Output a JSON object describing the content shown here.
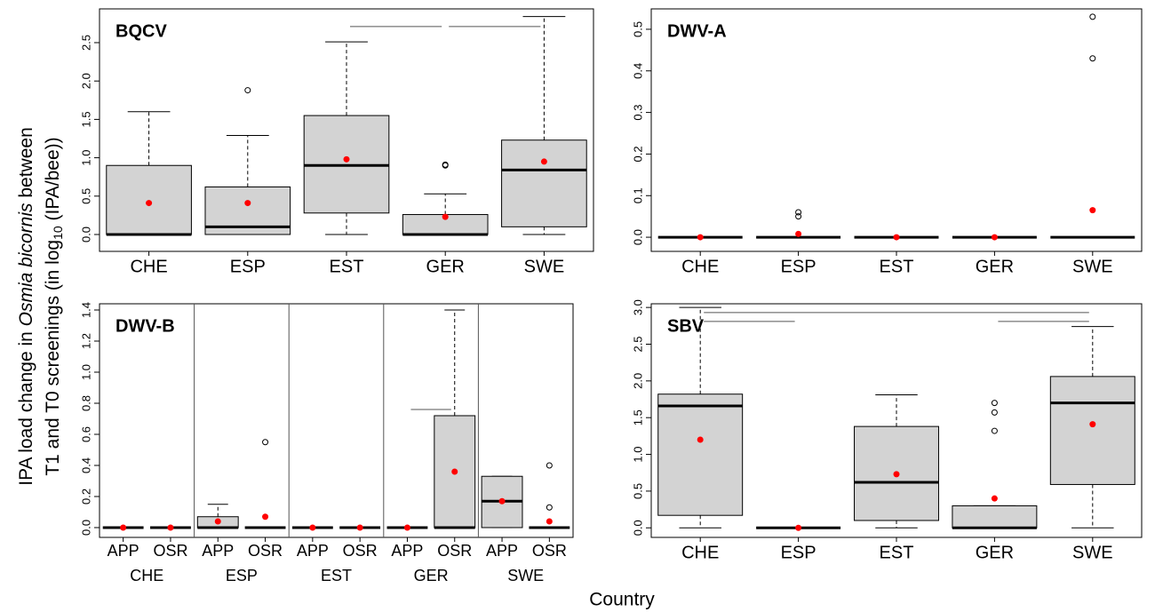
{
  "y_label": [
    [
      "IPA load change in ",
      "Osmia bicornis",
      " between"
    ],
    [
      "T1 and T0 screenings (in log",
      "10",
      " (IPA/bee))"
    ]
  ],
  "x_label": "Country",
  "chart_data": [
    {
      "type": "box",
      "title": "BQCV",
      "categories": [
        "CHE",
        "ESP",
        "EST",
        "GER",
        "SWE"
      ],
      "box_color": "#d3d3d3",
      "mean_color": "#ff0000",
      "boxes": [
        {
          "min": 0,
          "q1": 0,
          "median": 0,
          "q3": 0.9,
          "max": 1.6,
          "mean": 0.41
        },
        {
          "min": 0,
          "q1": 0,
          "median": 0.1,
          "q3": 0.62,
          "max": 1.29,
          "mean": 0.41,
          "outliers": [
            1.88
          ]
        },
        {
          "min": 0,
          "q1": 0.28,
          "median": 0.9,
          "q3": 1.55,
          "max": 2.51,
          "mean": 0.98
        },
        {
          "min": 0,
          "q1": 0,
          "median": 0,
          "q3": 0.26,
          "max": 0.53,
          "mean": 0.23,
          "outliers": [
            0.9,
            0.91
          ]
        },
        {
          "min": 0,
          "q1": 0.1,
          "median": 0.84,
          "q3": 1.23,
          "max": 2.84,
          "mean": 0.95
        }
      ],
      "comparisons": [
        {
          "from": 2,
          "to": 3,
          "y": 2.71
        },
        {
          "from": 3,
          "to": 4,
          "y": 2.71
        }
      ],
      "ylim": [
        -0.22,
        2.94
      ],
      "yticks": [
        {
          "value": 0,
          "label": "0.0"
        },
        0.5,
        {
          "value": 1,
          "label": "1.0"
        },
        1.5,
        {
          "value": 2,
          "label": "2.0"
        },
        2.5
      ]
    },
    {
      "type": "box",
      "title": "DWV-A",
      "categories": [
        "CHE",
        "ESP",
        "EST",
        "GER",
        "SWE"
      ],
      "box_color": "#d3d3d3",
      "mean_color": "#ff0000",
      "boxes": [
        {
          "min": 0,
          "q1": 0,
          "median": 0,
          "q3": 0,
          "max": 0,
          "mean": 0
        },
        {
          "min": 0,
          "q1": 0,
          "median": 0,
          "q3": 0,
          "max": 0,
          "mean": 0.008,
          "outliers": [
            0.05,
            0.06
          ]
        },
        {
          "min": 0,
          "q1": 0,
          "median": 0,
          "q3": 0,
          "max": 0,
          "mean": 0
        },
        {
          "min": 0,
          "q1": 0,
          "median": 0,
          "q3": 0,
          "max": 0,
          "mean": 0
        },
        {
          "min": 0,
          "q1": 0,
          "median": 0,
          "q3": 0,
          "max": 0,
          "mean": 0.065,
          "outliers": [
            0.43,
            0.53
          ]
        }
      ],
      "ylim": [
        -0.034,
        0.549
      ],
      "yticks": [
        {
          "value": 0,
          "label": "0.0"
        },
        0.1,
        0.2,
        0.3,
        0.4,
        0.5
      ]
    },
    {
      "type": "box",
      "title": "DWV-B",
      "categories": [
        "APP",
        "OSR",
        "APP",
        "OSR",
        "APP",
        "OSR",
        "APP",
        "OSR",
        "APP",
        "OSR"
      ],
      "groups": [
        "CHE",
        "ESP",
        "EST",
        "GER",
        "SWE"
      ],
      "box_color": "#d3d3d3",
      "mean_color": "#ff0000",
      "boxes": [
        {
          "min": 0,
          "q1": 0,
          "median": 0,
          "q3": 0,
          "max": 0,
          "mean": 0
        },
        {
          "min": 0,
          "q1": 0,
          "median": 0,
          "q3": 0,
          "max": 0,
          "mean": 0
        },
        {
          "min": 0,
          "q1": 0,
          "median": 0,
          "q3": 0.07,
          "max": 0.15,
          "mean": 0.04
        },
        {
          "min": 0,
          "q1": 0,
          "median": 0,
          "q3": 0,
          "max": 0,
          "mean": 0.07,
          "outliers": [
            0.55
          ]
        },
        {
          "min": 0,
          "q1": 0,
          "median": 0,
          "q3": 0,
          "max": 0,
          "mean": 0
        },
        {
          "min": 0,
          "q1": 0,
          "median": 0,
          "q3": 0,
          "max": 0,
          "mean": 0
        },
        {
          "min": 0,
          "q1": 0,
          "median": 0,
          "q3": 0,
          "max": 0,
          "mean": 0
        },
        {
          "min": 0,
          "q1": 0,
          "median": 0,
          "q3": 0.72,
          "max": 1.4,
          "mean": 0.36
        },
        {
          "min": 0,
          "q1": 0,
          "median": 0.17,
          "q3": 0.33,
          "max": 0.33,
          "mean": 0.17
        },
        {
          "min": 0,
          "q1": 0,
          "median": 0,
          "q3": 0,
          "max": 0,
          "mean": 0.04,
          "outliers": [
            0.13,
            0.4
          ]
        }
      ],
      "comparisons": [
        {
          "from": 6,
          "to": 7,
          "y": 0.76
        }
      ],
      "ylim": [
        -0.063,
        1.44
      ],
      "yticks": [
        {
          "value": 0,
          "label": "0.0"
        },
        0.2,
        0.4,
        0.6,
        0.8,
        {
          "value": 1,
          "label": "1.0"
        },
        1.2,
        1.4
      ]
    },
    {
      "type": "box",
      "title": "SBV",
      "categories": [
        "CHE",
        "ESP",
        "EST",
        "GER",
        "SWE"
      ],
      "box_color": "#d3d3d3",
      "mean_color": "#ff0000",
      "boxes": [
        {
          "min": 0,
          "q1": 0.17,
          "median": 1.66,
          "q3": 1.82,
          "max": 3.0,
          "mean": 1.2
        },
        {
          "min": 0,
          "q1": 0,
          "median": 0,
          "q3": 0,
          "max": 0,
          "mean": 0
        },
        {
          "min": 0,
          "q1": 0.1,
          "median": 0.62,
          "q3": 1.38,
          "max": 1.81,
          "mean": 0.73
        },
        {
          "min": 0,
          "q1": 0,
          "median": 0,
          "q3": 0.3,
          "max": 0.3,
          "mean": 0.4,
          "outliers": [
            1.32,
            1.57,
            1.7
          ]
        },
        {
          "min": 0,
          "q1": 0.59,
          "median": 1.7,
          "q3": 2.06,
          "max": 2.74,
          "mean": 1.41
        }
      ],
      "comparisons": [
        {
          "from": 0,
          "to": 4,
          "y": 2.93
        },
        {
          "from": 0,
          "to": 1,
          "y": 2.81
        },
        {
          "from": 3,
          "to": 4,
          "y": 2.81
        }
      ],
      "ylim": [
        -0.13,
        3.05
      ],
      "yticks": [
        {
          "value": 0,
          "label": "0.0"
        },
        0.5,
        {
          "value": 1,
          "label": "1.0"
        },
        1.5,
        {
          "value": 2,
          "label": "2.0"
        },
        2.5,
        {
          "value": 3,
          "label": "3.0"
        }
      ]
    }
  ]
}
